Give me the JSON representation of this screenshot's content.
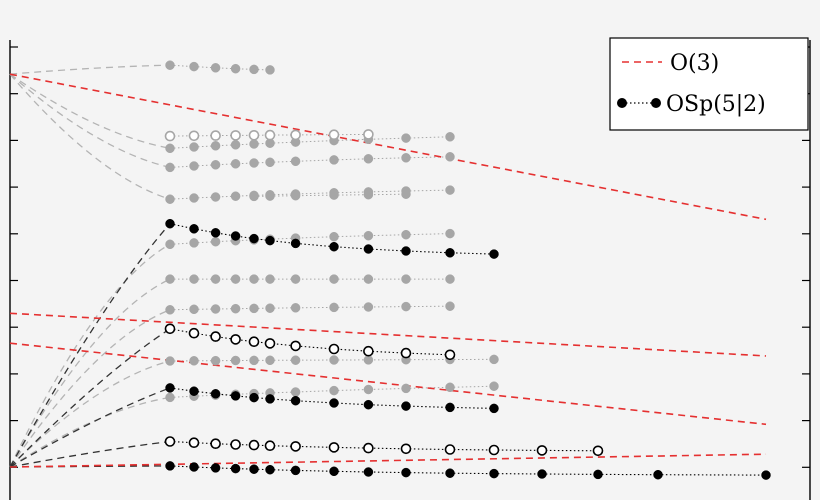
{
  "chart_data": {
    "type": "scatter",
    "title": "",
    "xlabel": "",
    "ylabel": "",
    "xlim": [
      0,
      1
    ],
    "ylim": [
      0,
      1
    ],
    "grid": false,
    "legend_position": "top-right",
    "legend": [
      {
        "label": "O(3)",
        "style": "dashed",
        "color": "#e53030"
      },
      {
        "label": "OSp(5|2)",
        "style": "dotted-filled",
        "color": "#000000"
      }
    ],
    "colors": {
      "o3": "#e53030",
      "osp": "#000000",
      "other": "#a6a6a6",
      "guide": "#b4b4b4"
    },
    "xs": [
      0.2,
      0.23,
      0.257,
      0.282,
      0.305,
      0.325,
      0.357,
      0.405,
      0.448,
      0.495,
      0.55,
      0.605,
      0.665,
      0.735,
      0.81,
      0.945
    ],
    "series": {
      "o3_lines": [
        {
          "y0": 0.92,
          "y1": 0.58
        },
        {
          "y0": 0.36,
          "y1": 0.26
        },
        {
          "y0": 0.29,
          "y1": 0.1
        },
        {
          "y0": 0.0,
          "y1": 0.03
        }
      ],
      "osp_filled": [
        {
          "from": 0,
          "to": 11,
          "b": 0.49,
          "c": 0.73,
          "k": 5.5
        },
        {
          "from": 0,
          "to": 11,
          "b": 0.13,
          "c": 0.28,
          "k": 5.0
        },
        {
          "from": 0,
          "to": 15,
          "b": -0.02,
          "c": 0.03,
          "k": 4.0
        }
      ],
      "osp_open": [
        {
          "from": 0,
          "to": 10,
          "b": 0.25,
          "c": 0.45,
          "k": 5.0
        },
        {
          "from": 0,
          "to": 13,
          "b": 0.035,
          "c": 0.09,
          "k": 4.0
        }
      ],
      "other_levels": [
        {
          "from": 0,
          "to": 5,
          "b": 0.92,
          "c": 0.99,
          "k": 6.0
        },
        {
          "from": 0,
          "to": 10,
          "b": 0.8,
          "c": 0.72,
          "k": 2.0
        },
        {
          "from": 0,
          "to": 10,
          "b": 0.74,
          "c": 0.67,
          "k": 3.0
        },
        {
          "from": 0,
          "to": 10,
          "b": 0.66,
          "c": 0.6,
          "k": 3.0
        },
        {
          "from": 0,
          "to": 10,
          "b": 0.56,
          "c": 0.49,
          "k": 3.0
        },
        {
          "from": 0,
          "to": 10,
          "b": 0.44,
          "c": 0.44,
          "k": 3.0
        },
        {
          "from": 0,
          "to": 10,
          "b": 0.385,
          "c": 0.36,
          "k": 2.0
        },
        {
          "from": 0,
          "to": 11,
          "b": 0.255,
          "c": 0.245,
          "k": 2.0
        },
        {
          "from": 0,
          "to": 11,
          "b": 0.21,
          "c": 0.14,
          "k": 2.0
        },
        {
          "from": 4,
          "to": 9,
          "b": 0.65,
          "c": 0.62,
          "k": 2.0
        }
      ],
      "other_open": [
        {
          "from": 0,
          "to": 8,
          "b": 0.785,
          "c": 0.77,
          "k": 2.0
        }
      ]
    }
  }
}
